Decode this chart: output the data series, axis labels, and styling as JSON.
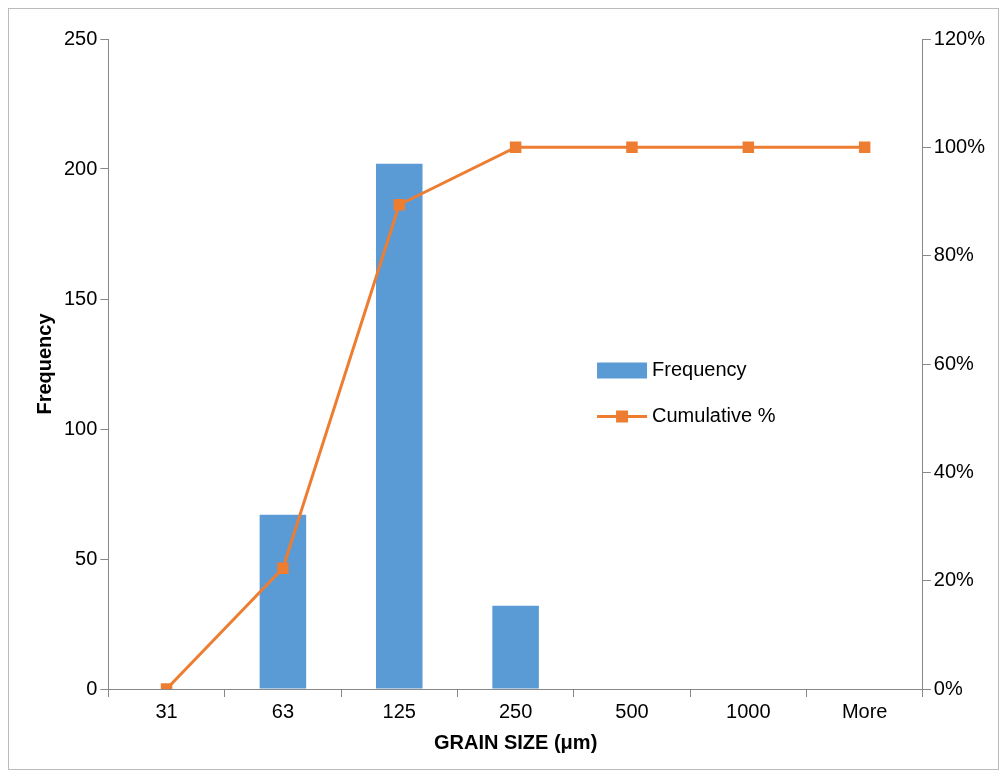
{
  "chart_data": {
    "type": "bar",
    "xlabel": "GRAIN SIZE (μm)",
    "ylabel": "Frequency",
    "categories": [
      "31",
      "63",
      "125",
      "250",
      "500",
      "1000",
      "More"
    ],
    "series": [
      {
        "name": "Frequency",
        "color": "#5b9bd5",
        "values": [
          0,
          67,
          202,
          32,
          0,
          0,
          0
        ]
      },
      {
        "name": "Cumulative %",
        "type": "line",
        "axis": "y2",
        "color": "#ed7d31",
        "marker": "square",
        "values": [
          0,
          22.3,
          89.4,
          100,
          100,
          100,
          100
        ]
      }
    ],
    "ylim": [
      0,
      250
    ],
    "yticks": [
      0,
      50,
      100,
      150,
      200,
      250
    ],
    "y2lim": [
      0,
      120
    ],
    "y2ticks": [
      {
        "value": 0,
        "label": "0%"
      },
      {
        "value": 20,
        "label": "20%"
      },
      {
        "value": 40,
        "label": "40%"
      },
      {
        "value": 60,
        "label": "60%"
      },
      {
        "value": 80,
        "label": "80%"
      },
      {
        "value": 100,
        "label": "100%"
      },
      {
        "value": 120,
        "label": "120%"
      }
    ],
    "grid": false,
    "legend": "right"
  }
}
